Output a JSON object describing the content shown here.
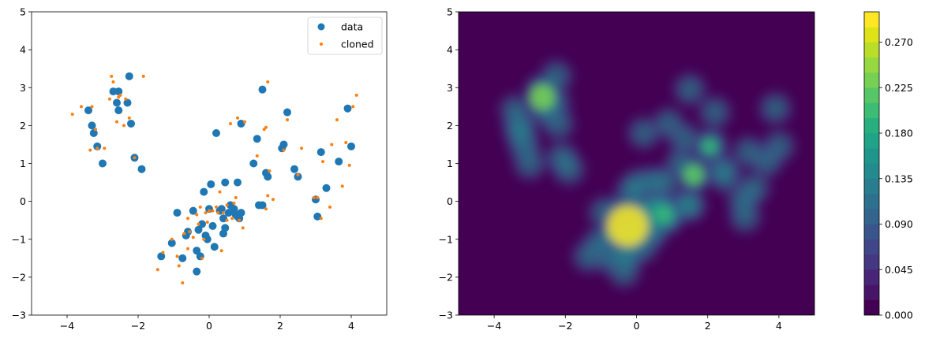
{
  "chart_data": [
    {
      "type": "scatter",
      "title": "",
      "xlabel": "",
      "ylabel": "",
      "xlim": [
        -5,
        5
      ],
      "ylim": [
        -3,
        5
      ],
      "xticks": [
        "−4",
        "−2",
        "0",
        "2",
        "4"
      ],
      "yticks": [
        "−3",
        "−2",
        "−1",
        "0",
        "1",
        "2",
        "3",
        "4",
        "5"
      ],
      "legend": {
        "placement": "top-right"
      },
      "series": [
        {
          "name": "data",
          "color": "#1f77b4",
          "points": [
            [
              -3.4,
              2.4
            ],
            [
              -3.3,
              2.0
            ],
            [
              -3.25,
              1.8
            ],
            [
              -3.15,
              1.45
            ],
            [
              -3.0,
              1.0
            ],
            [
              -2.7,
              2.9
            ],
            [
              -2.6,
              2.6
            ],
            [
              -2.55,
              2.9
            ],
            [
              -2.55,
              2.4
            ],
            [
              -2.3,
              2.6
            ],
            [
              -2.25,
              3.3
            ],
            [
              -2.2,
              2.05
            ],
            [
              -2.1,
              1.15
            ],
            [
              -1.9,
              0.85
            ],
            [
              -1.35,
              -1.45
            ],
            [
              -1.05,
              -1.1
            ],
            [
              -0.9,
              -0.3
            ],
            [
              -0.75,
              -1.5
            ],
            [
              -0.65,
              -0.9
            ],
            [
              -0.6,
              -0.8
            ],
            [
              -0.45,
              -0.25
            ],
            [
              -0.35,
              -1.3
            ],
            [
              -0.35,
              -1.85
            ],
            [
              -0.3,
              -0.75
            ],
            [
              -0.25,
              -1.45
            ],
            [
              -0.2,
              -0.6
            ],
            [
              -0.15,
              0.25
            ],
            [
              -0.1,
              -0.9
            ],
            [
              -0.05,
              -1.0
            ],
            [
              0.0,
              -0.2
            ],
            [
              0.05,
              0.45
            ],
            [
              0.1,
              -0.65
            ],
            [
              0.15,
              -1.2
            ],
            [
              0.2,
              1.8
            ],
            [
              0.3,
              -0.25
            ],
            [
              0.35,
              -0.2
            ],
            [
              0.4,
              -0.85
            ],
            [
              0.4,
              -0.45
            ],
            [
              0.45,
              -0.7
            ],
            [
              0.45,
              0.5
            ],
            [
              0.55,
              -0.3
            ],
            [
              0.6,
              -0.1
            ],
            [
              0.7,
              -0.2
            ],
            [
              0.75,
              -0.35
            ],
            [
              0.8,
              0.5
            ],
            [
              0.8,
              -0.4
            ],
            [
              0.85,
              -0.45
            ],
            [
              0.9,
              -0.3
            ],
            [
              0.9,
              2.05
            ],
            [
              1.25,
              1.0
            ],
            [
              1.35,
              1.65
            ],
            [
              1.4,
              -0.1
            ],
            [
              1.5,
              -0.1
            ],
            [
              1.5,
              2.95
            ],
            [
              1.6,
              0.75
            ],
            [
              1.65,
              0.65
            ],
            [
              2.05,
              1.4
            ],
            [
              2.1,
              1.5
            ],
            [
              2.2,
              2.35
            ],
            [
              2.4,
              0.85
            ],
            [
              2.5,
              0.65
            ],
            [
              3.0,
              0.05
            ],
            [
              3.05,
              -0.4
            ],
            [
              3.15,
              1.3
            ],
            [
              3.3,
              0.35
            ],
            [
              3.65,
              1.05
            ],
            [
              3.9,
              2.45
            ],
            [
              4.0,
              1.45
            ]
          ]
        },
        {
          "name": "cloned",
          "color": "#ff7f0e",
          "points": [
            [
              -3.85,
              2.3
            ],
            [
              -3.6,
              2.5
            ],
            [
              -3.35,
              1.35
            ],
            [
              -3.3,
              2.5
            ],
            [
              -3.2,
              1.9
            ],
            [
              -3.15,
              1.4
            ],
            [
              -2.95,
              1.4
            ],
            [
              -2.8,
              2.7
            ],
            [
              -2.75,
              3.3
            ],
            [
              -2.7,
              3.15
            ],
            [
              -2.6,
              2.1
            ],
            [
              -2.55,
              2.75
            ],
            [
              -2.5,
              2.8
            ],
            [
              -2.4,
              2.0
            ],
            [
              -2.35,
              2.7
            ],
            [
              -2.25,
              2.2
            ],
            [
              -2.1,
              1.15
            ],
            [
              -1.85,
              3.3
            ],
            [
              -1.45,
              -1.8
            ],
            [
              -1.3,
              -1.35
            ],
            [
              -1.05,
              -1.0
            ],
            [
              -0.9,
              -1.45
            ],
            [
              -0.85,
              -1.7
            ],
            [
              -0.75,
              -2.15
            ],
            [
              -0.7,
              -0.85
            ],
            [
              -0.6,
              -0.45
            ],
            [
              -0.6,
              -1.25
            ],
            [
              -0.55,
              -0.8
            ],
            [
              -0.45,
              -0.95
            ],
            [
              -0.35,
              -0.35
            ],
            [
              -0.3,
              -0.6
            ],
            [
              -0.25,
              -0.15
            ],
            [
              -0.2,
              -1.5
            ],
            [
              -0.15,
              -1.0
            ],
            [
              -0.1,
              -0.3
            ],
            [
              -0.05,
              -0.55
            ],
            [
              0.0,
              -0.25
            ],
            [
              0.1,
              -0.25
            ],
            [
              0.2,
              -0.15
            ],
            [
              0.25,
              -0.3
            ],
            [
              0.3,
              0.25
            ],
            [
              0.35,
              -1.3
            ],
            [
              0.4,
              -0.3
            ],
            [
              0.5,
              -0.5
            ],
            [
              0.5,
              -0.1
            ],
            [
              0.6,
              2.05
            ],
            [
              0.65,
              -0.45
            ],
            [
              0.7,
              -0.05
            ],
            [
              0.75,
              0.1
            ],
            [
              0.8,
              2.2
            ],
            [
              0.85,
              -0.5
            ],
            [
              0.95,
              -0.7
            ],
            [
              1.0,
              2.1
            ],
            [
              1.35,
              1.2
            ],
            [
              1.55,
              1.9
            ],
            [
              1.6,
              1.95
            ],
            [
              1.6,
              -0.2
            ],
            [
              1.65,
              3.15
            ],
            [
              1.65,
              0.15
            ],
            [
              1.7,
              0.8
            ],
            [
              1.8,
              0.05
            ],
            [
              2.1,
              1.35
            ],
            [
              2.2,
              2.15
            ],
            [
              2.5,
              0.7
            ],
            [
              2.6,
              1.4
            ],
            [
              2.95,
              0.1
            ],
            [
              3.05,
              0.1
            ],
            [
              3.15,
              -0.45
            ],
            [
              3.2,
              1.05
            ],
            [
              3.4,
              -0.15
            ],
            [
              3.45,
              1.5
            ],
            [
              3.6,
              2.15
            ],
            [
              3.75,
              0.4
            ],
            [
              3.85,
              1.55
            ],
            [
              3.95,
              0.95
            ],
            [
              4.05,
              2.5
            ],
            [
              4.15,
              2.8
            ]
          ]
        }
      ]
    },
    {
      "type": "heatmap",
      "title": "",
      "xlabel": "",
      "ylabel": "",
      "xlim": [
        -5,
        5
      ],
      "ylim": [
        -3,
        5
      ],
      "xticks": [
        "−4",
        "−2",
        "0",
        "2",
        "4"
      ],
      "yticks": [
        "−3",
        "−2",
        "−1",
        "0",
        "1",
        "2",
        "3",
        "4",
        "5"
      ],
      "colormap": "viridis",
      "levels": [
        0,
        0.015,
        0.03,
        0.045,
        0.06,
        0.075,
        0.09,
        0.105,
        0.12,
        0.135,
        0.15,
        0.165,
        0.18,
        0.195,
        0.21,
        0.225,
        0.24,
        0.255,
        0.27,
        0.285,
        0.3
      ],
      "colorbar": {
        "range": [
          0,
          0.3
        ],
        "ticks": [
          "0.000",
          "0.045",
          "0.090",
          "0.135",
          "0.180",
          "0.225",
          "0.270"
        ]
      }
    }
  ]
}
